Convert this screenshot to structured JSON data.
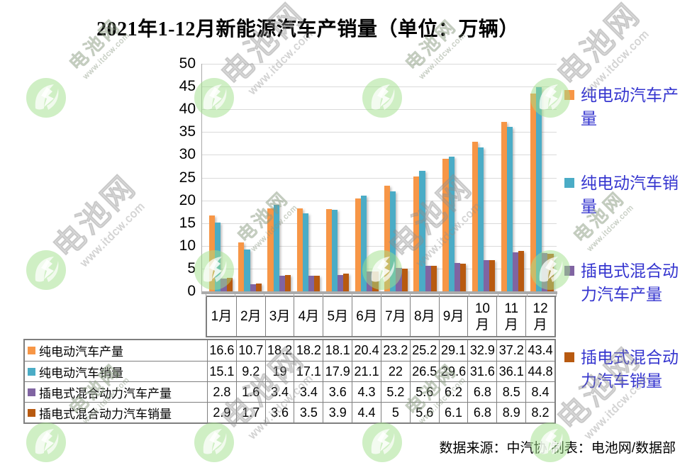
{
  "title": "2021年1-12月新能源汽车产销量（单位：万辆）",
  "footer": "数据来源：中汽协 制表：电池网/数据部",
  "watermark": {
    "logo_name": "battery-network-logo",
    "text_line1": "电池网",
    "text_line2": "www.itdcw.com"
  },
  "colors": {
    "bev_production": "#F79646",
    "bev_sales": "#4BACC6",
    "phev_production": "#8064A2",
    "phev_sales": "#B85A10",
    "legend_text": "#3535CF",
    "gridline": "#DADADA",
    "axis": "#ABABAB",
    "table_border": "#7F7F7F"
  },
  "chart_data": {
    "type": "bar",
    "title": "2021年1-12月新能源汽车产销量（单位：万辆）",
    "unit": "万辆",
    "categories": [
      "1月",
      "2月",
      "3月",
      "4月",
      "5月",
      "6月",
      "7月",
      "8月",
      "9月",
      "10月",
      "11月",
      "12月"
    ],
    "series": [
      {
        "name": "纯电动汽车产量",
        "color": "#F79646",
        "values": [
          16.6,
          10.7,
          18.2,
          18.2,
          18.1,
          20.4,
          23.2,
          25.2,
          29.1,
          32.9,
          37.2,
          43.4
        ]
      },
      {
        "name": "纯电动汽车销量",
        "color": "#4BACC6",
        "values": [
          15.1,
          9.2,
          19,
          17.1,
          17.9,
          21.1,
          22,
          26.5,
          29.6,
          31.6,
          36.1,
          44.8
        ]
      },
      {
        "name": "插电式混合动力汽车产量",
        "color": "#8064A2",
        "values": [
          2.8,
          1.6,
          3.4,
          3.4,
          3.6,
          4.3,
          5.2,
          5.6,
          6.2,
          6.8,
          8.5,
          8.4
        ]
      },
      {
        "name": "插电式混合动力汽车销量",
        "color": "#B85A10",
        "values": [
          2.9,
          1.7,
          3.6,
          3.5,
          3.9,
          4.4,
          5,
          5.6,
          6.1,
          6.8,
          8.9,
          8.2
        ]
      }
    ],
    "xlabel": "",
    "ylabel": "",
    "ylim": [
      0,
      50
    ],
    "y_tick_step": 5,
    "grid": "horizontal",
    "legend_position": "right",
    "data_table_shown": true
  }
}
